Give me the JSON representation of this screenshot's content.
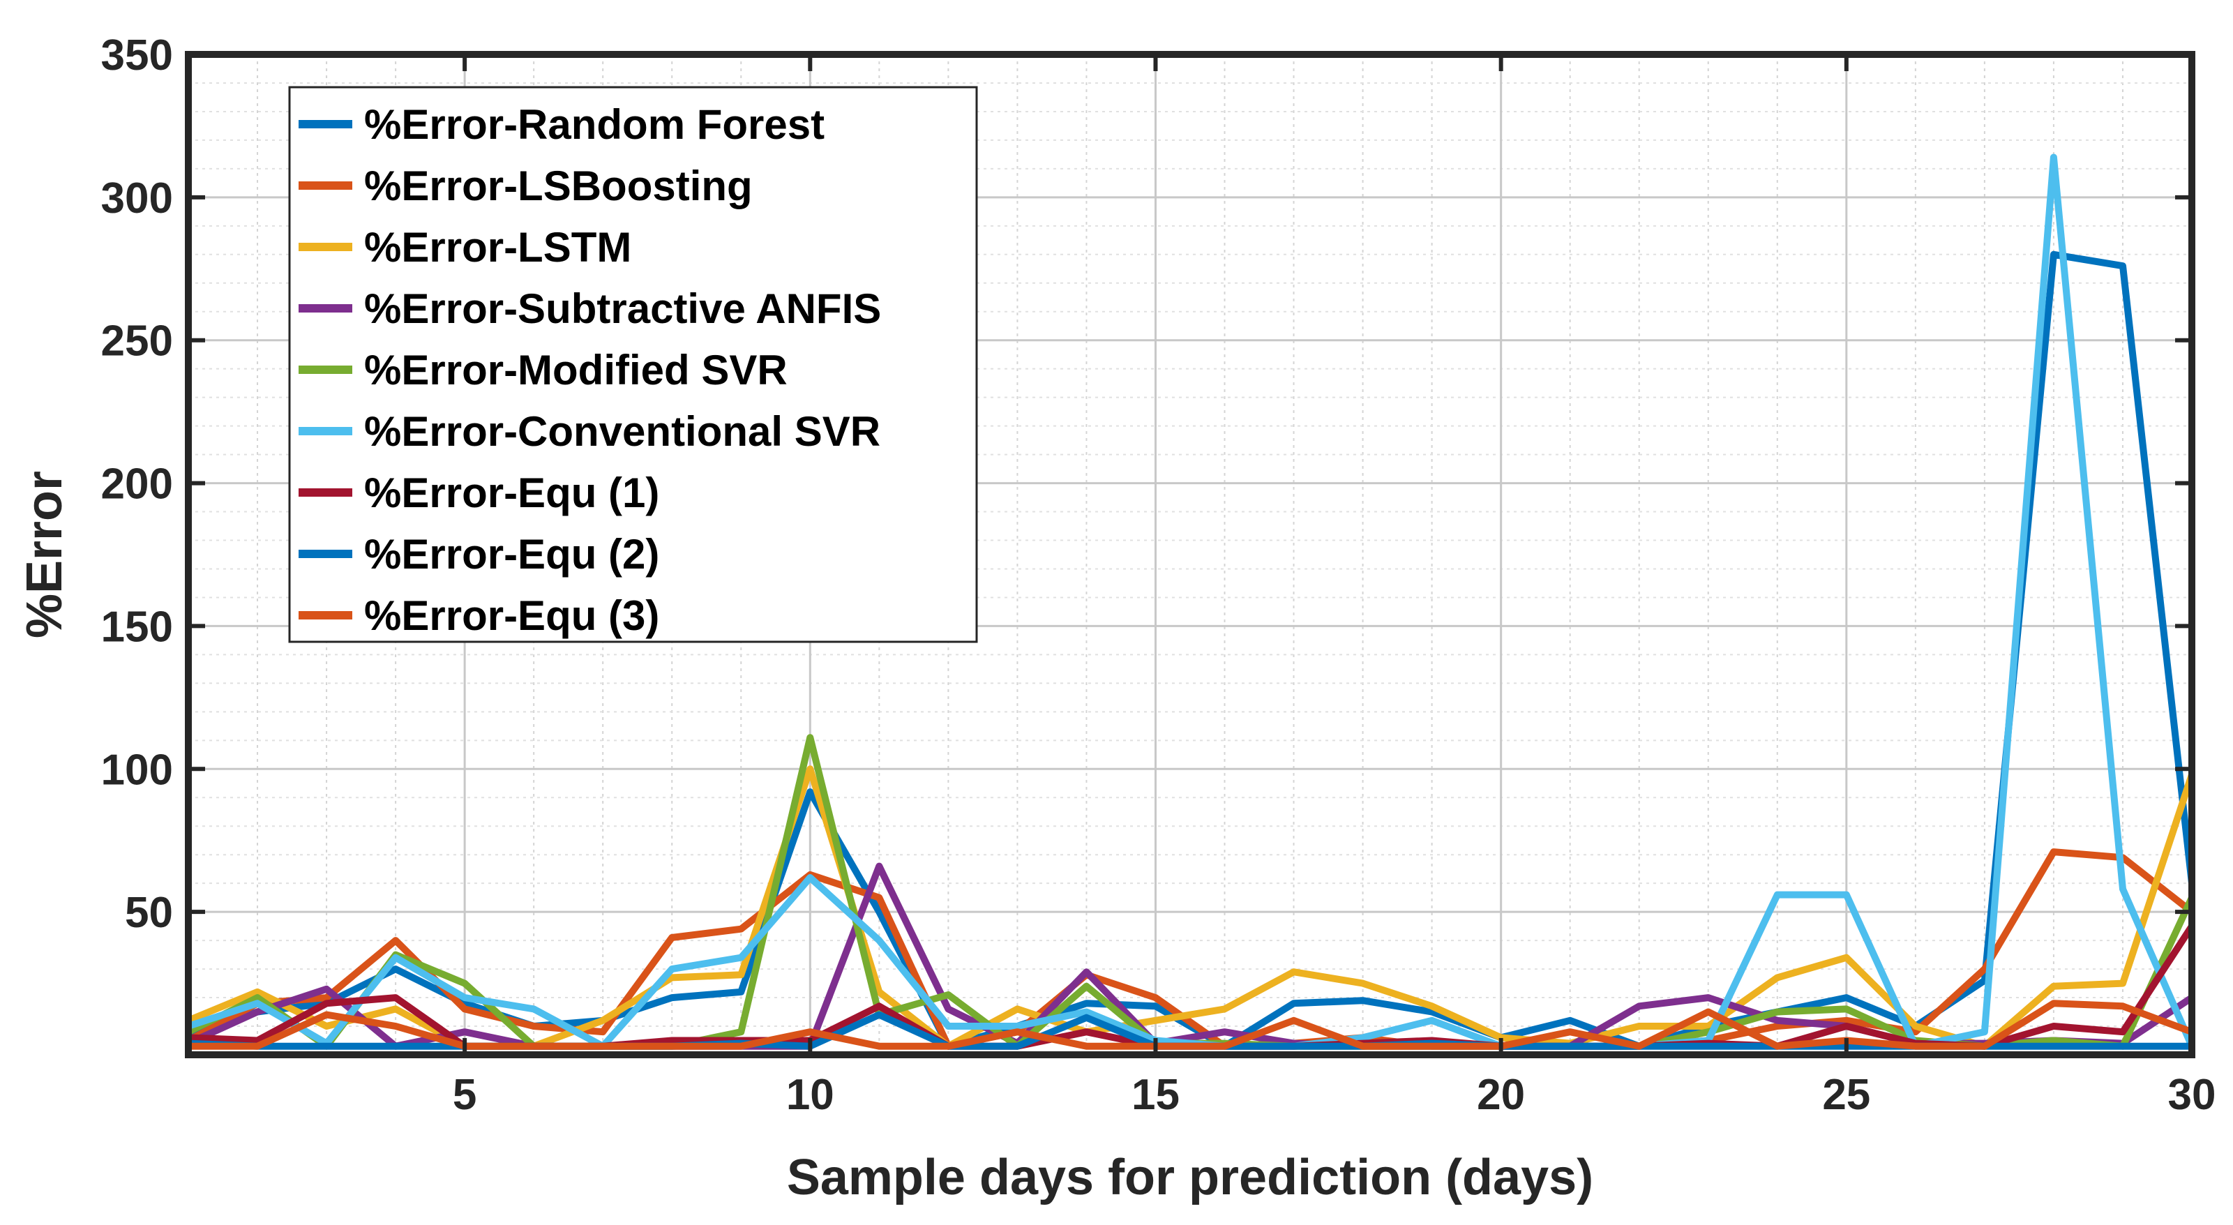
{
  "chart_data": {
    "type": "line",
    "title": "",
    "xlabel": "Sample days for prediction (days)",
    "ylabel": "%Error",
    "xlim": [
      1,
      30
    ],
    "ylim": [
      0,
      350
    ],
    "grid": true,
    "legend_position": "top-left",
    "xticks": [
      5,
      10,
      15,
      20,
      25,
      30
    ],
    "yticks": [
      50,
      100,
      150,
      200,
      250,
      300,
      350
    ],
    "x": [
      1,
      2,
      3,
      4,
      5,
      6,
      7,
      8,
      9,
      10,
      11,
      12,
      13,
      14,
      15,
      16,
      17,
      18,
      19,
      20,
      21,
      22,
      23,
      24,
      25,
      26,
      27,
      28,
      29,
      30
    ],
    "series": [
      {
        "name": "%Error-Random Forest",
        "color": "#0072BD",
        "values": [
          8,
          15,
          18,
          30,
          18,
          10,
          12,
          20,
          22,
          92,
          50,
          3,
          10,
          18,
          17,
          3,
          18,
          19,
          15,
          6,
          12,
          3,
          10,
          15,
          20,
          10,
          26,
          280,
          276,
          60
        ]
      },
      {
        "name": "%Error-LSBoosting",
        "color": "#D95319",
        "values": [
          5,
          18,
          20,
          40,
          16,
          10,
          8,
          41,
          44,
          63,
          55,
          3,
          8,
          28,
          20,
          3,
          4,
          6,
          3,
          3,
          3,
          3,
          5,
          10,
          12,
          8,
          30,
          71,
          69,
          50
        ]
      },
      {
        "name": "%Error-LSTM",
        "color": "#EDB120",
        "values": [
          12,
          22,
          10,
          16,
          3,
          3,
          12,
          27,
          28,
          100,
          22,
          3,
          16,
          8,
          12,
          16,
          29,
          25,
          17,
          6,
          4,
          10,
          10,
          27,
          34,
          10,
          3,
          24,
          25,
          98
        ]
      },
      {
        "name": "%Error-Subtractive ANFIS",
        "color": "#7E2F8E",
        "values": [
          4,
          15,
          23,
          3,
          8,
          3,
          3,
          3,
          3,
          3,
          66,
          16,
          4,
          29,
          4,
          8,
          4,
          3,
          3,
          3,
          3,
          17,
          20,
          12,
          10,
          4,
          4,
          5,
          4,
          20
        ]
      },
      {
        "name": "%Error-Modified SVR",
        "color": "#77AC30",
        "values": [
          8,
          20,
          3,
          35,
          25,
          3,
          3,
          3,
          8,
          111,
          14,
          21,
          3,
          24,
          4,
          4,
          3,
          3,
          3,
          3,
          3,
          3,
          8,
          15,
          16,
          5,
          3,
          5,
          3,
          55
        ]
      },
      {
        "name": "%Error-Conventional SVR",
        "color": "#4DBEEE",
        "values": [
          10,
          18,
          4,
          34,
          20,
          16,
          3,
          30,
          34,
          62,
          40,
          10,
          10,
          15,
          5,
          3,
          3,
          6,
          12,
          3,
          3,
          3,
          5,
          56,
          56,
          3,
          8,
          314,
          58,
          3
        ]
      },
      {
        "name": "%Error-Equ (1)",
        "color": "#A2142F",
        "values": [
          6,
          5,
          18,
          20,
          3,
          3,
          3,
          5,
          5,
          5,
          17,
          3,
          3,
          8,
          3,
          3,
          3,
          4,
          5,
          3,
          3,
          3,
          4,
          3,
          10,
          4,
          3,
          10,
          8,
          45
        ]
      },
      {
        "name": "%Error-Equ (2)",
        "color": "#0072BD",
        "values": [
          4,
          3,
          3,
          3,
          3,
          3,
          3,
          3,
          4,
          3,
          14,
          3,
          3,
          13,
          3,
          3,
          3,
          3,
          4,
          3,
          3,
          3,
          3,
          3,
          3,
          3,
          3,
          3,
          3,
          3
        ]
      },
      {
        "name": "%Error-Equ (3)",
        "color": "#D95319",
        "values": [
          3,
          3,
          14,
          10,
          3,
          3,
          3,
          3,
          3,
          8,
          3,
          3,
          8,
          3,
          3,
          3,
          12,
          3,
          3,
          3,
          8,
          3,
          15,
          3,
          5,
          3,
          3,
          18,
          17,
          8
        ]
      }
    ]
  }
}
